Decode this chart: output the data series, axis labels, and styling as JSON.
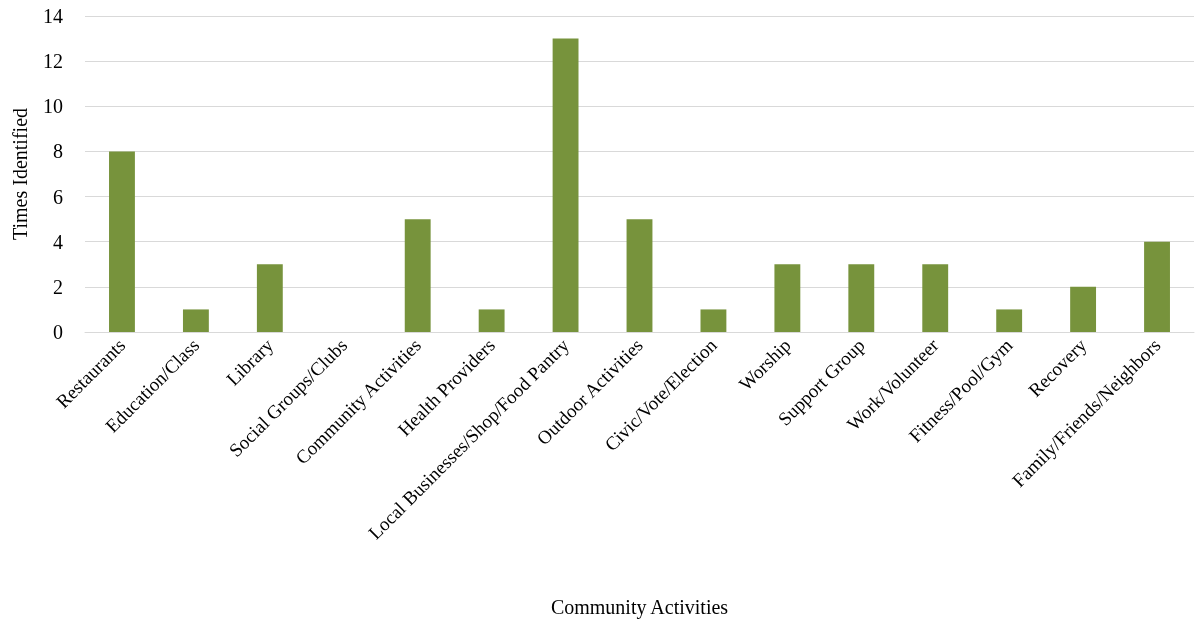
{
  "chart_data": {
    "type": "bar",
    "xlabel": "Community Activities",
    "ylabel": "Times Identified",
    "categories": [
      "Restaurants",
      "Education/Class",
      "Library",
      "Social Groups/Clubs",
      "Community Activities",
      "Health Providers",
      "Local Businesses/Shop/Food Pantry",
      "Outdoor Activities",
      "Civic/Vote/Election",
      "Worship",
      "Support Group",
      "Work/Volunteer",
      "Fitness/Pool/Gym",
      "Recovery",
      "Family/Friends/Neighbors"
    ],
    "values": [
      8,
      1,
      3,
      0,
      5,
      1,
      13,
      5,
      1,
      3,
      3,
      3,
      1,
      2,
      4
    ],
    "color": "#77933c",
    "ylim": [
      0,
      14
    ],
    "yticks": [
      0,
      2,
      4,
      6,
      8,
      10,
      12,
      14
    ],
    "grid": "y"
  }
}
